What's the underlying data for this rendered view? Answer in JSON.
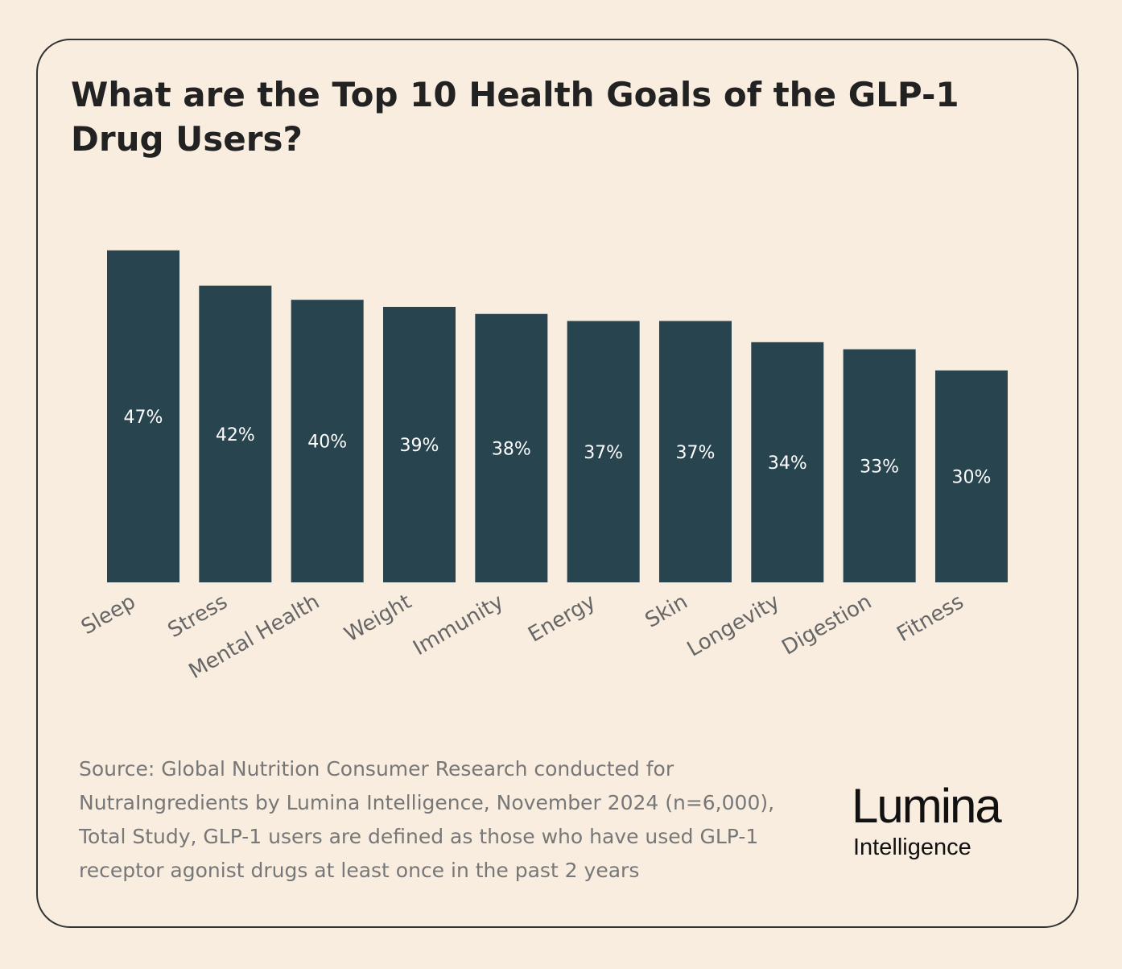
{
  "chart_data": {
    "type": "bar",
    "title": "What are the Top 10 Health Goals of the GLP-1 Drug Users?",
    "categories": [
      "Sleep",
      "Stress",
      "Mental Health",
      "Weight",
      "Immunity",
      "Energy",
      "Skin",
      "Longevity",
      "Digestion",
      "Fitness"
    ],
    "values": [
      47,
      42,
      40,
      39,
      38,
      37,
      37,
      34,
      33,
      30
    ],
    "value_labels": [
      "47%",
      "42%",
      "40%",
      "39%",
      "38%",
      "37%",
      "37%",
      "34%",
      "33%",
      "30%"
    ],
    "color": "#27444f",
    "source": "Source: Global Nutrition Consumer Research conducted for NutraIngredients by Lumina Intelligence, November 2024 (n=6,000), Total Study, GLP-1 users are defined as those who have used GLP-1 receptor agonist drugs at least once in the past 2 years"
  },
  "logo": {
    "name": "Lumina",
    "tagline": "Intelligence"
  }
}
